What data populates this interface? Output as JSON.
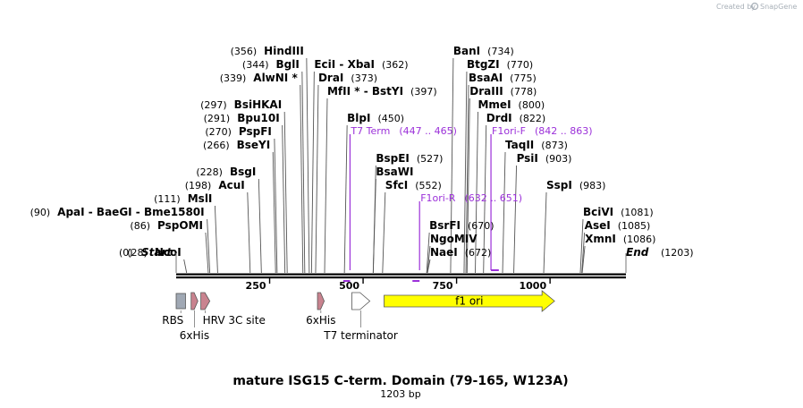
{
  "credit": {
    "created_by": "Created by",
    "brand": "SnapGene",
    "icon": "snapgene-logo-icon"
  },
  "title": "mature ISG15 C-term. Domain (79-165, W123A)",
  "subtitle": "1203 bp",
  "sequence_length": 1203,
  "ruler": {
    "ticks": [
      250,
      500,
      750,
      1000
    ]
  },
  "ends": {
    "start_label": "Start",
    "start_pos": "(0)",
    "end_label": "End",
    "end_pos": "(1203)"
  },
  "sites": [
    {
      "name": "NcoI",
      "pos_label": "(28)",
      "pos": 28,
      "side": "left",
      "row": 0
    },
    {
      "name": "PspOMI",
      "pos_label": "(86)",
      "pos": 86,
      "side": "left",
      "row": 2
    },
    {
      "name": "ApaI  - BaeGI  - Bme1580I",
      "pos_label": "(90)",
      "pos": 90,
      "side": "left",
      "row": 3
    },
    {
      "name": "MslI",
      "pos_label": "(111)",
      "pos": 111,
      "side": "left",
      "row": 4
    },
    {
      "name": "AcuI",
      "pos_label": "(198)",
      "pos": 198,
      "side": "left",
      "row": 5
    },
    {
      "name": "BsgI",
      "pos_label": "(228)",
      "pos": 228,
      "side": "left",
      "row": 6
    },
    {
      "name": "BseYI",
      "pos_label": "(266)",
      "pos": 266,
      "side": "left",
      "row": 8
    },
    {
      "name": "PspFI",
      "pos_label": "(270)",
      "pos": 270,
      "side": "left",
      "row": 9
    },
    {
      "name": "Bpu10I",
      "pos_label": "(291)",
      "pos": 291,
      "side": "left",
      "row": 10
    },
    {
      "name": "BsiHKAI",
      "pos_label": "(297)",
      "pos": 297,
      "side": "left",
      "row": 11
    },
    {
      "name": "AlwNI *",
      "pos_label": "(339)",
      "pos": 339,
      "side": "left",
      "row": 13
    },
    {
      "name": "BglI",
      "pos_label": "(344)",
      "pos": 344,
      "side": "left",
      "row": 14
    },
    {
      "name": "HindIII",
      "pos_label": "(356)",
      "pos": 356,
      "side": "left",
      "row": 15
    },
    {
      "name": "EciI  - XbaI",
      "pos_label": "(362)",
      "pos": 362,
      "side": "right",
      "row": 14
    },
    {
      "name": "DraI",
      "pos_label": "(373)",
      "pos": 373,
      "side": "right",
      "row": 13
    },
    {
      "name": "MfII *  - BstYI",
      "pos_label": "(397)",
      "pos": 397,
      "side": "right",
      "row": 12
    },
    {
      "name": "BlpI",
      "pos_label": "(450)",
      "pos": 450,
      "side": "right",
      "row": 10
    },
    {
      "name": "BspEI",
      "pos_label": "(527)",
      "pos": 527,
      "side": "right",
      "row": 7
    },
    {
      "name": "BsaWI",
      "pos_label": "",
      "pos": 527,
      "side": "right",
      "row": 6
    },
    {
      "name": "SfcI",
      "pos_label": "(552)",
      "pos": 552,
      "side": "right",
      "row": 5
    },
    {
      "name": "BsrFI",
      "pos_label": "(670)",
      "pos": 670,
      "side": "right",
      "row": 2
    },
    {
      "name": "NgoMIV",
      "pos_label": "",
      "pos": 672,
      "side": "right",
      "row": 1
    },
    {
      "name": "NaeI",
      "pos_label": "(672)",
      "pos": 672,
      "side": "right",
      "row": 0
    },
    {
      "name": "BanI",
      "pos_label": "(734)",
      "pos": 734,
      "side": "right",
      "row": 15
    },
    {
      "name": "BtgZI",
      "pos_label": "(770)",
      "pos": 770,
      "side": "right",
      "row": 14
    },
    {
      "name": "BsaAI",
      "pos_label": "(775)",
      "pos": 775,
      "side": "right",
      "row": 13
    },
    {
      "name": "DraIII",
      "pos_label": "(778)",
      "pos": 778,
      "side": "right",
      "row": 12
    },
    {
      "name": "MmeI",
      "pos_label": "(800)",
      "pos": 800,
      "side": "right",
      "row": 11
    },
    {
      "name": "DrdI",
      "pos_label": "(822)",
      "pos": 822,
      "side": "right",
      "row": 10
    },
    {
      "name": "TaqII",
      "pos_label": "(873)",
      "pos": 873,
      "side": "right",
      "row": 8
    },
    {
      "name": "PsiI",
      "pos_label": "(903)",
      "pos": 903,
      "side": "right",
      "row": 7
    },
    {
      "name": "SspI",
      "pos_label": "(983)",
      "pos": 983,
      "side": "right",
      "row": 5
    },
    {
      "name": "BciVI",
      "pos_label": "(1081)",
      "pos": 1081,
      "side": "right",
      "row": 3
    },
    {
      "name": "AseI",
      "pos_label": "(1085)",
      "pos": 1085,
      "side": "right",
      "row": 2
    },
    {
      "name": "XmnI",
      "pos_label": "(1086)",
      "pos": 1086,
      "side": "right",
      "row": 1
    }
  ],
  "primers": [
    {
      "name": "T7 Term",
      "range": "(447 .. 465)",
      "start": 447,
      "end": 465,
      "row": 9,
      "strand": "reverse"
    },
    {
      "name": "F1ori-R",
      "range": "(632 .. 651)",
      "start": 632,
      "end": 651,
      "row": 4,
      "strand": "reverse"
    },
    {
      "name": "F1ori-F",
      "range": "(842 .. 863)",
      "start": 842,
      "end": 863,
      "row": 9,
      "strand": "forward"
    }
  ],
  "features": [
    {
      "name": "RBS",
      "label_pos": "below",
      "start": 0,
      "end": 25,
      "shape": "box",
      "color": "#a0a8b4"
    },
    {
      "name": "6xHis",
      "label_pos": "below2",
      "start": 40,
      "end": 58,
      "shape": "arrow",
      "color": "#c9838f"
    },
    {
      "name": "HRV 3C site",
      "label_pos": "below",
      "start": 66,
      "end": 90,
      "shape": "arrow",
      "color": "#c9838f"
    },
    {
      "name": "6xHis",
      "label_pos": "below",
      "start": 378,
      "end": 396,
      "shape": "arrow",
      "color": "#c9838f"
    },
    {
      "name": "T7 terminator",
      "label_pos": "below2",
      "start": 470,
      "end": 518,
      "shape": "arrow",
      "color": "#ffffff"
    },
    {
      "name": "f1 ori",
      "label_pos": "inside",
      "start": 556,
      "end": 1012,
      "shape": "arrow",
      "color": "#ffff00"
    }
  ]
}
